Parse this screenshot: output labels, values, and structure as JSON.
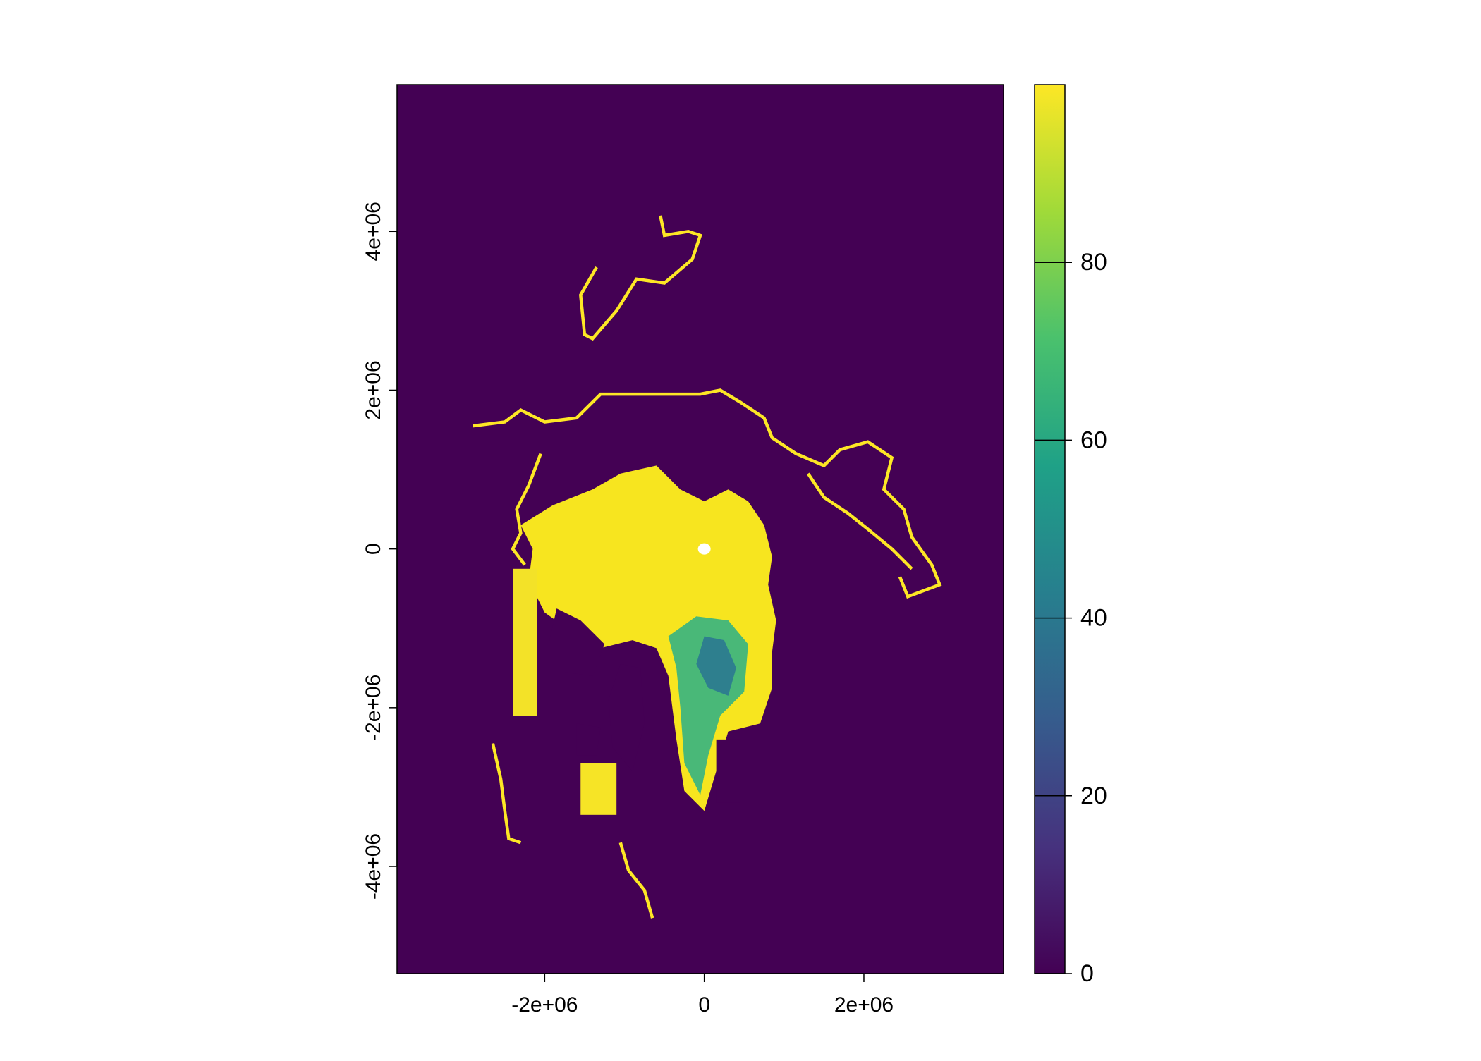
{
  "chart_data": {
    "type": "heatmap",
    "title": "",
    "xlabel": "",
    "ylabel": "",
    "x_ticks": [
      -2000000,
      0,
      2000000
    ],
    "x_tick_labels": [
      "-2e+06",
      "0",
      "2e+06"
    ],
    "y_ticks": [
      -4000000,
      -2000000,
      0,
      2000000,
      4000000
    ],
    "y_tick_labels": [
      "-4e+06",
      "-2e+06",
      "0",
      "2e+06",
      "4e+06"
    ],
    "xlim": [
      -3850000,
      3750000
    ],
    "ylim": [
      -5350000,
      5850000
    ],
    "colorbar": {
      "ticks": [
        0,
        20,
        40,
        60,
        80
      ],
      "tick_labels": [
        "0",
        "20",
        "40",
        "60",
        "80"
      ],
      "range": [
        0,
        100
      ],
      "colormap": "viridis",
      "colors": [
        "#440154",
        "#46327e",
        "#365c8d",
        "#277f8e",
        "#1fa187",
        "#4ac16d",
        "#a0da39",
        "#fde725"
      ]
    },
    "background_value": 0,
    "background_color": "#440154",
    "highlight_color": "#fde725",
    "pole_hole_color": "#ffffff",
    "grid": false,
    "legend": "right"
  }
}
